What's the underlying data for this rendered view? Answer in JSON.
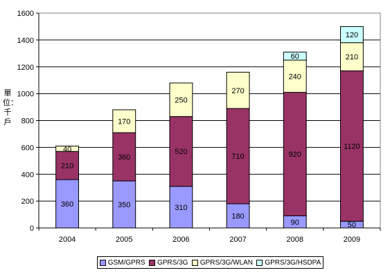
{
  "chart_data": {
    "type": "bar",
    "stacked": true,
    "categories": [
      "2004",
      "2005",
      "2006",
      "2007",
      "2008",
      "2009"
    ],
    "ylabel": "單位：千戶",
    "ylim": [
      0,
      1600
    ],
    "yticks": [
      "0",
      "200",
      "400",
      "600",
      "800",
      "1000",
      "1200",
      "1400",
      "1600"
    ],
    "grid": true,
    "legend_position": "bottom",
    "series": [
      {
        "name": "GSM/GPRS",
        "color": "#9999ff",
        "values": [
          360,
          350,
          310,
          180,
          90,
          50
        ],
        "labels": [
          "360",
          "350",
          "310",
          "180",
          "90",
          "50"
        ]
      },
      {
        "name": "GPRS/3G",
        "color": "#993366",
        "values": [
          210,
          360,
          520,
          710,
          920,
          1120
        ],
        "labels": [
          "210",
          "360",
          "520",
          "710",
          "920",
          "1120"
        ]
      },
      {
        "name": "GPRS/3G/WLAN",
        "color": "#ffffcc",
        "values": [
          40,
          170,
          250,
          270,
          240,
          210
        ],
        "labels": [
          "40",
          "170",
          "250",
          "270",
          "240",
          "210"
        ]
      },
      {
        "name": "GPRS/3G/HSDPA",
        "color": "#ccffff",
        "values": [
          0,
          0,
          0,
          0,
          60,
          120
        ],
        "labels": [
          "",
          "",
          "",
          "",
          "60",
          "120"
        ]
      }
    ]
  }
}
